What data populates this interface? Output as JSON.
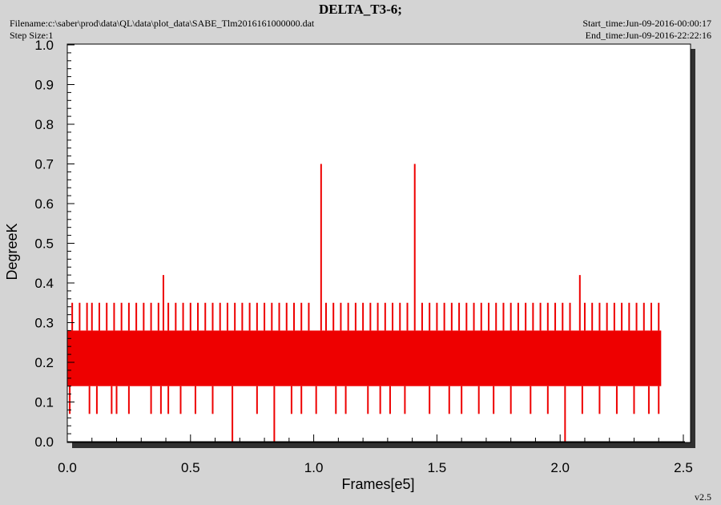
{
  "header": {
    "title": "DELTA_T3-6;",
    "filename": "Filename:c:\\saber\\prod\\data\\QL\\data\\plot_data\\SABE_Tlm2016161000000.dat",
    "step_size": "Step Size:1",
    "start_time": "Start_time:Jun-09-2016-00:00:17",
    "end_time": "End_time:Jun-09-2016-22:22:16",
    "version": "v2.5"
  },
  "colors": {
    "series": "#ee0000",
    "plot_bg": "#ffffff",
    "frame_bg": "#d4d4d4",
    "shadow": "#303030"
  },
  "chart_data": {
    "type": "line",
    "title": "DELTA_T3-6;",
    "xlabel": "Frames[e5]",
    "ylabel": "DegreeK",
    "xlim": [
      0,
      2.5
    ],
    "ylim": [
      0,
      1.0
    ],
    "x_ticks": [
      "0.0",
      "0.5",
      "1.0",
      "1.5",
      "2.0",
      "2.5"
    ],
    "y_ticks": [
      "0.0",
      "0.1",
      "0.2",
      "0.3",
      "0.4",
      "0.5",
      "0.6",
      "0.7",
      "0.8",
      "0.9",
      "1.0"
    ],
    "grid": false,
    "series": [
      {
        "color": "#ee0000",
        "x_range": [
          0,
          2.41
        ],
        "band_low": 0.14,
        "band_high": 0.28,
        "spikes_high": [
          {
            "x": 0.02,
            "y": 0.35
          },
          {
            "x": 0.05,
            "y": 0.35
          },
          {
            "x": 0.08,
            "y": 0.35
          },
          {
            "x": 0.1,
            "y": 0.35
          },
          {
            "x": 0.13,
            "y": 0.35
          },
          {
            "x": 0.16,
            "y": 0.35
          },
          {
            "x": 0.19,
            "y": 0.35
          },
          {
            "x": 0.22,
            "y": 0.35
          },
          {
            "x": 0.25,
            "y": 0.35
          },
          {
            "x": 0.28,
            "y": 0.35
          },
          {
            "x": 0.31,
            "y": 0.35
          },
          {
            "x": 0.34,
            "y": 0.35
          },
          {
            "x": 0.37,
            "y": 0.35
          },
          {
            "x": 0.39,
            "y": 0.42
          },
          {
            "x": 0.41,
            "y": 0.35
          },
          {
            "x": 0.44,
            "y": 0.35
          },
          {
            "x": 0.47,
            "y": 0.35
          },
          {
            "x": 0.5,
            "y": 0.35
          },
          {
            "x": 0.53,
            "y": 0.35
          },
          {
            "x": 0.56,
            "y": 0.35
          },
          {
            "x": 0.59,
            "y": 0.35
          },
          {
            "x": 0.62,
            "y": 0.35
          },
          {
            "x": 0.65,
            "y": 0.35
          },
          {
            "x": 0.68,
            "y": 0.35
          },
          {
            "x": 0.71,
            "y": 0.35
          },
          {
            "x": 0.74,
            "y": 0.35
          },
          {
            "x": 0.77,
            "y": 0.35
          },
          {
            "x": 0.8,
            "y": 0.35
          },
          {
            "x": 0.83,
            "y": 0.35
          },
          {
            "x": 0.86,
            "y": 0.35
          },
          {
            "x": 0.89,
            "y": 0.35
          },
          {
            "x": 0.92,
            "y": 0.35
          },
          {
            "x": 0.95,
            "y": 0.35
          },
          {
            "x": 0.98,
            "y": 0.35
          },
          {
            "x": 1.03,
            "y": 0.7
          },
          {
            "x": 1.05,
            "y": 0.35
          },
          {
            "x": 1.08,
            "y": 0.35
          },
          {
            "x": 1.11,
            "y": 0.35
          },
          {
            "x": 1.14,
            "y": 0.35
          },
          {
            "x": 1.17,
            "y": 0.35
          },
          {
            "x": 1.2,
            "y": 0.35
          },
          {
            "x": 1.23,
            "y": 0.35
          },
          {
            "x": 1.26,
            "y": 0.35
          },
          {
            "x": 1.29,
            "y": 0.35
          },
          {
            "x": 1.32,
            "y": 0.35
          },
          {
            "x": 1.35,
            "y": 0.35
          },
          {
            "x": 1.38,
            "y": 0.35
          },
          {
            "x": 1.41,
            "y": 0.7
          },
          {
            "x": 1.44,
            "y": 0.35
          },
          {
            "x": 1.47,
            "y": 0.35
          },
          {
            "x": 1.5,
            "y": 0.35
          },
          {
            "x": 1.53,
            "y": 0.35
          },
          {
            "x": 1.56,
            "y": 0.35
          },
          {
            "x": 1.59,
            "y": 0.35
          },
          {
            "x": 1.62,
            "y": 0.35
          },
          {
            "x": 1.65,
            "y": 0.35
          },
          {
            "x": 1.68,
            "y": 0.35
          },
          {
            "x": 1.71,
            "y": 0.35
          },
          {
            "x": 1.74,
            "y": 0.35
          },
          {
            "x": 1.77,
            "y": 0.35
          },
          {
            "x": 1.8,
            "y": 0.35
          },
          {
            "x": 1.83,
            "y": 0.35
          },
          {
            "x": 1.86,
            "y": 0.35
          },
          {
            "x": 1.89,
            "y": 0.35
          },
          {
            "x": 1.92,
            "y": 0.35
          },
          {
            "x": 1.95,
            "y": 0.35
          },
          {
            "x": 1.98,
            "y": 0.35
          },
          {
            "x": 2.01,
            "y": 0.35
          },
          {
            "x": 2.04,
            "y": 0.35
          },
          {
            "x": 2.08,
            "y": 0.42
          },
          {
            "x": 2.1,
            "y": 0.35
          },
          {
            "x": 2.13,
            "y": 0.35
          },
          {
            "x": 2.16,
            "y": 0.35
          },
          {
            "x": 2.19,
            "y": 0.35
          },
          {
            "x": 2.22,
            "y": 0.35
          },
          {
            "x": 2.25,
            "y": 0.35
          },
          {
            "x": 2.28,
            "y": 0.35
          },
          {
            "x": 2.31,
            "y": 0.35
          },
          {
            "x": 2.34,
            "y": 0.35
          },
          {
            "x": 2.37,
            "y": 0.35
          },
          {
            "x": 2.4,
            "y": 0.35
          }
        ],
        "spikes_low": [
          {
            "x": 0.01,
            "y": 0.07
          },
          {
            "x": 0.09,
            "y": 0.07
          },
          {
            "x": 0.12,
            "y": 0.07
          },
          {
            "x": 0.18,
            "y": 0.07
          },
          {
            "x": 0.2,
            "y": 0.07
          },
          {
            "x": 0.25,
            "y": 0.07
          },
          {
            "x": 0.34,
            "y": 0.07
          },
          {
            "x": 0.38,
            "y": 0.07
          },
          {
            "x": 0.41,
            "y": 0.07
          },
          {
            "x": 0.46,
            "y": 0.07
          },
          {
            "x": 0.52,
            "y": 0.07
          },
          {
            "x": 0.59,
            "y": 0.07
          },
          {
            "x": 0.67,
            "y": 0.0
          },
          {
            "x": 0.77,
            "y": 0.07
          },
          {
            "x": 0.84,
            "y": 0.0
          },
          {
            "x": 0.91,
            "y": 0.07
          },
          {
            "x": 0.95,
            "y": 0.07
          },
          {
            "x": 1.01,
            "y": 0.07
          },
          {
            "x": 1.09,
            "y": 0.07
          },
          {
            "x": 1.13,
            "y": 0.07
          },
          {
            "x": 1.22,
            "y": 0.07
          },
          {
            "x": 1.27,
            "y": 0.07
          },
          {
            "x": 1.31,
            "y": 0.07
          },
          {
            "x": 1.37,
            "y": 0.07
          },
          {
            "x": 1.47,
            "y": 0.07
          },
          {
            "x": 1.55,
            "y": 0.07
          },
          {
            "x": 1.6,
            "y": 0.07
          },
          {
            "x": 1.67,
            "y": 0.07
          },
          {
            "x": 1.73,
            "y": 0.07
          },
          {
            "x": 1.8,
            "y": 0.07
          },
          {
            "x": 1.88,
            "y": 0.07
          },
          {
            "x": 1.95,
            "y": 0.07
          },
          {
            "x": 2.02,
            "y": 0.0
          },
          {
            "x": 2.09,
            "y": 0.07
          },
          {
            "x": 2.16,
            "y": 0.07
          },
          {
            "x": 2.23,
            "y": 0.07
          },
          {
            "x": 2.3,
            "y": 0.07
          },
          {
            "x": 2.36,
            "y": 0.07
          },
          {
            "x": 2.4,
            "y": 0.07
          }
        ]
      }
    ]
  }
}
